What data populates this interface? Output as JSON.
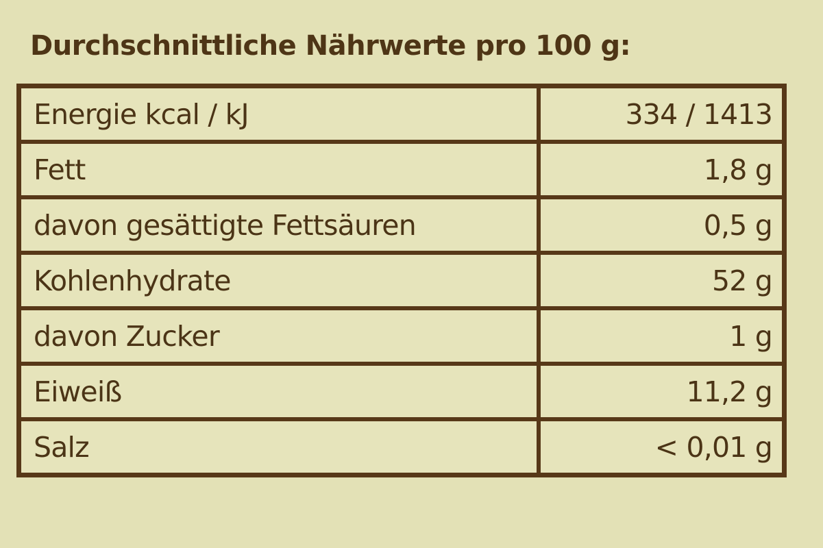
{
  "title": "Durchschnittliche Nährwerte pro 100 g:",
  "rows": [
    {
      "label": "Energie kcal / kJ",
      "value": "334 / 1413"
    },
    {
      "label": "Fett",
      "value": "1,8 g"
    },
    {
      "label": "davon gesättigte Fettsäuren",
      "value": "0,5 g"
    },
    {
      "label": "Kohlenhydrate",
      "value": "52 g"
    },
    {
      "label": "davon Zucker",
      "value": "1 g"
    },
    {
      "label": "Eiweiß",
      "value": "11,2 g"
    },
    {
      "label": "Salz",
      "value": "< 0,01 g"
    }
  ],
  "colors": {
    "background": "#e3e1b6",
    "border": "#573818",
    "text": "#4b3416"
  }
}
